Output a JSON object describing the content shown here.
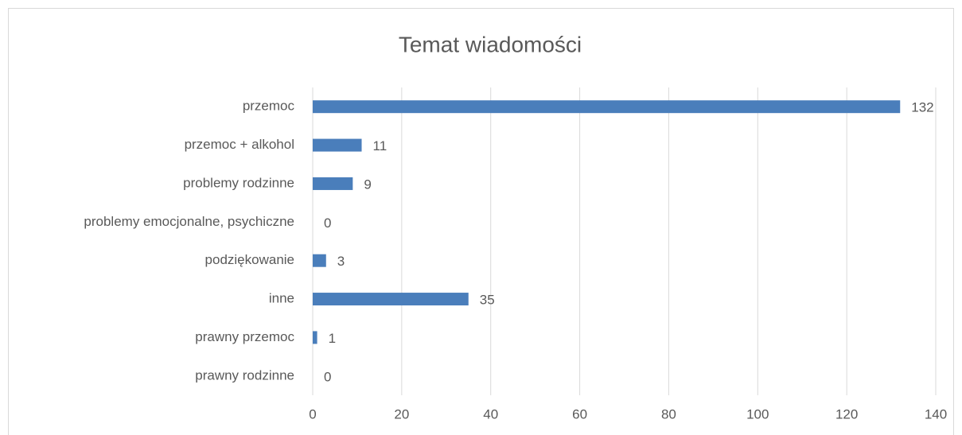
{
  "chart_data": {
    "type": "bar",
    "orientation": "horizontal",
    "title": "Temat wiadomości",
    "categories": [
      "przemoc",
      "przemoc + alkohol",
      "problemy rodzinne",
      "problemy emocjonalne, psychiczne",
      "podziękowanie",
      "inne",
      "prawny przemoc",
      "prawny rodzinne"
    ],
    "values": [
      132,
      11,
      9,
      0,
      3,
      35,
      1,
      0
    ],
    "color": "#4a7ebb",
    "xlim": [
      0,
      140
    ],
    "xticks": [
      0,
      20,
      40,
      60,
      80,
      100,
      120,
      140
    ],
    "grid": true,
    "data_labels": true
  }
}
